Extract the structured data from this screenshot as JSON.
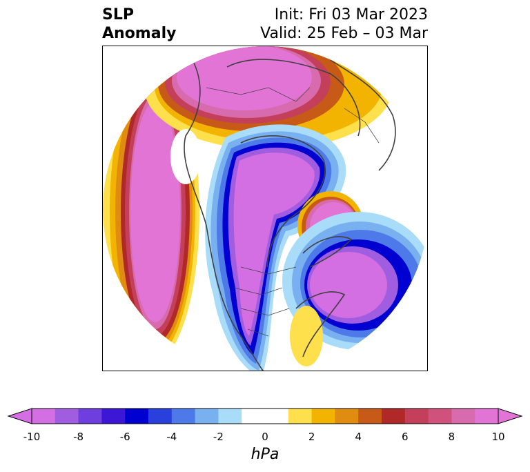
{
  "title": {
    "line1": "SLP",
    "line2": "Anomaly",
    "init": "Init: Fri 03 Mar 2023",
    "valid": "Valid: 25 Feb – 03 Mar"
  },
  "colorbar": {
    "units": "hPa",
    "min": -10,
    "max": 10,
    "step": 1,
    "extend": "both",
    "ticks": [
      "-10",
      "-8",
      "-6",
      "-4",
      "-2",
      "0",
      "2",
      "4",
      "6",
      "8",
      "10"
    ],
    "colors": [
      "#d36ee3",
      "#a05de0",
      "#6e3ede",
      "#3c18d6",
      "#0000d0",
      "#2a40dc",
      "#4d7ae8",
      "#78b0f0",
      "#a8dcf8",
      "#ffffff",
      "#ffffff",
      "#fde04c",
      "#f2b400",
      "#e08c10",
      "#c85a18",
      "#b02828",
      "#c4405a",
      "#d0527c",
      "#d86aae",
      "#e274d6"
    ],
    "under_color": "#d36ee3",
    "over_color": "#e274d6"
  },
  "map": {
    "projection": "north-polar-stereographic",
    "features": [
      "coastlines",
      "country-borders",
      "state-borders"
    ]
  }
}
